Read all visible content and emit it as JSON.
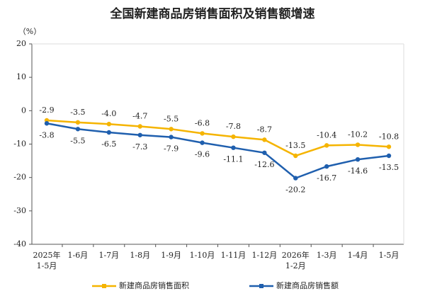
{
  "chart_data": {
    "type": "line",
    "title": "全国新建商品房销售面积及销售额增速",
    "y_label": "（%）",
    "categories": [
      "2025年\n1-5月",
      "1-6月",
      "1-7月",
      "1-8月",
      "1-9月",
      "1-10月",
      "1-11月",
      "1-12月",
      "2026年\n1-2月",
      "1-3月",
      "1-4月",
      "1-5月"
    ],
    "series": [
      {
        "name": "新建商品房销售面积",
        "color": "#f5b400",
        "values": [
          -2.9,
          -3.5,
          -4.0,
          -4.7,
          -5.5,
          -6.8,
          -7.8,
          -8.7,
          -13.5,
          -10.4,
          -10.2,
          -10.8
        ],
        "value_labels": [
          "-2.9",
          "-3.5",
          "-4.0",
          "-4.7",
          "-5.5",
          "-6.8",
          "-7.8",
          "-8.7",
          "-13.5",
          "-10.4",
          "-10.2",
          "-10.8"
        ]
      },
      {
        "name": "新建商品房销售额",
        "color": "#1f5fae",
        "values": [
          -3.8,
          -5.5,
          -6.5,
          -7.3,
          -7.9,
          -9.6,
          -11.1,
          -12.6,
          -20.2,
          -16.7,
          -14.6,
          -13.5
        ],
        "value_labels": [
          "-3.8",
          "-5.5",
          "-6.5",
          "-7.3",
          "-7.9",
          "-9.6",
          "-11.1",
          "-12.6",
          "-20.2",
          "-16.7",
          "-14.6",
          "-13.5"
        ]
      }
    ],
    "ylim": [
      -40,
      20
    ],
    "yticks": [
      -40,
      -30,
      -20,
      -10,
      0,
      10,
      20
    ],
    "grid": false,
    "legend": "bottom"
  }
}
